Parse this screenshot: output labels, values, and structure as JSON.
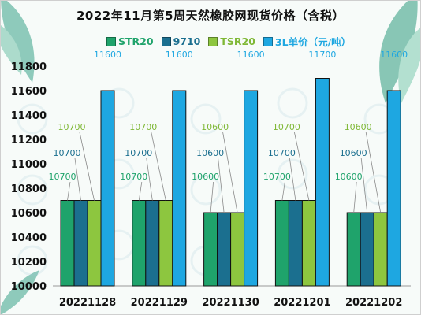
{
  "chart_data": {
    "type": "bar",
    "title": "2022年11月第5周天然橡胶网现货价格（含税）",
    "categories": [
      "20221128",
      "20221129",
      "20221130",
      "20221201",
      "20221202"
    ],
    "series": [
      {
        "name": "STR20",
        "color": "#1fa36b",
        "label_color": "#1fa36b",
        "values": [
          10700,
          10700,
          10600,
          10700,
          10600
        ]
      },
      {
        "name": "9710",
        "color": "#1b6f8f",
        "label_color": "#1b6f8f",
        "values": [
          10700,
          10700,
          10600,
          10700,
          10600
        ]
      },
      {
        "name": "TSR20",
        "color": "#8dc63f",
        "label_color": "#7fb836",
        "values": [
          10700,
          10700,
          10600,
          10700,
          10600
        ]
      },
      {
        "name": "3L单价（元/吨）",
        "color": "#1ea7e1",
        "label_color": "#1ea7e1",
        "values": [
          11600,
          11600,
          11600,
          11700,
          11600
        ]
      }
    ],
    "ylim": [
      10000,
      11800
    ],
    "yticks": [
      "10000",
      "10200",
      "10400",
      "10600",
      "10800",
      "11000",
      "11200",
      "11400",
      "11600",
      "11800"
    ],
    "grid": false,
    "legend_position": "top"
  }
}
